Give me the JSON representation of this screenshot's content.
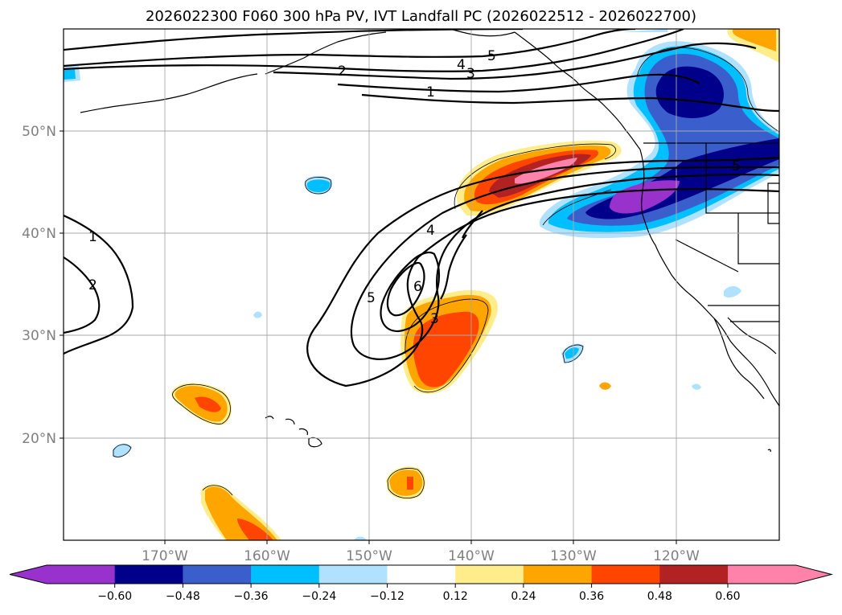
{
  "title": "2026022300 F060 300 hPa PV, IVT Landfall PC (2026022512 - 2026022700)",
  "lat_labels": [
    "50°N",
    "40°N",
    "30°N",
    "20°N"
  ],
  "lon_labels": [
    "170°W",
    "160°W",
    "150°W",
    "140°W",
    "130°W",
    "120°W"
  ],
  "contour_labels": [
    "5",
    "4",
    "3",
    "2",
    "1",
    "1",
    "2",
    "4",
    "5",
    "6",
    "3",
    "5"
  ],
  "colorbar": {
    "ticks": [
      "−0.60",
      "−0.48",
      "−0.36",
      "−0.24",
      "−0.12",
      "0.12",
      "0.24",
      "0.36",
      "0.48",
      "0.60"
    ],
    "colors": [
      "#9932cc",
      "#00008b",
      "#3a5fcd",
      "#00bfff",
      "#b0e2ff",
      "#ffffff",
      "#ffec8b",
      "#ffa500",
      "#ff4500",
      "#b22222",
      "#ff82ab",
      "#ff82ab"
    ]
  }
}
